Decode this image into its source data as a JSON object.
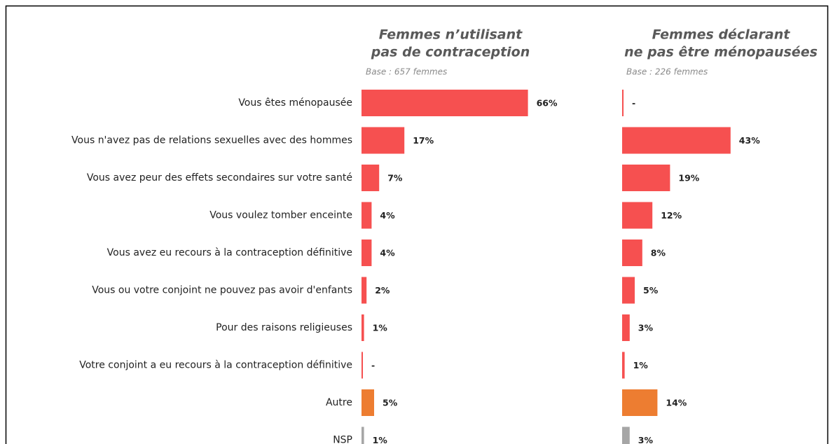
{
  "chart_data": {
    "type": "bar",
    "categories": [
      "Vous êtes ménopausée",
      "Vous n'avez pas de relations sexuelles avec des hommes",
      "Vous avez peur des effets secondaires sur votre santé",
      "Vous voulez tomber enceinte",
      "Vous avez eu recours à la contraception définitive",
      "Vous ou votre conjoint ne pouvez pas avoir d'enfants",
      "Pour des raisons religieuses",
      "Votre conjoint a eu recours à la contraception définitive",
      "Autre",
      "NSP"
    ],
    "series": [
      {
        "title_lines": [
          "Femmes n’utilisant",
          "pas de contraception"
        ],
        "base": "Base : 657 femmes",
        "values": [
          66,
          17,
          7,
          4,
          4,
          2,
          1,
          0,
          5,
          1
        ],
        "value_labels": [
          "66%",
          "17%",
          "7%",
          "4%",
          "4%",
          "2%",
          "1%",
          "-",
          "5%",
          "1%"
        ],
        "colors": [
          "#f65050",
          "#f65050",
          "#f65050",
          "#f65050",
          "#f65050",
          "#f65050",
          "#f65050",
          "#f65050",
          "#ed7d31",
          "#a6a6a6"
        ]
      },
      {
        "title_lines": [
          "Femmes déclarant",
          "ne pas être ménopausées"
        ],
        "base": "Base : 226 femmes",
        "values": [
          0,
          43,
          19,
          12,
          8,
          5,
          3,
          1,
          14,
          3
        ],
        "value_labels": [
          "-",
          "43%",
          "19%",
          "12%",
          "8%",
          "5%",
          "3%",
          "1%",
          "14%",
          "3%"
        ],
        "colors": [
          "#f65050",
          "#f65050",
          "#f65050",
          "#f65050",
          "#f65050",
          "#f65050",
          "#f65050",
          "#f65050",
          "#ed7d31",
          "#a6a6a6"
        ]
      }
    ]
  }
}
